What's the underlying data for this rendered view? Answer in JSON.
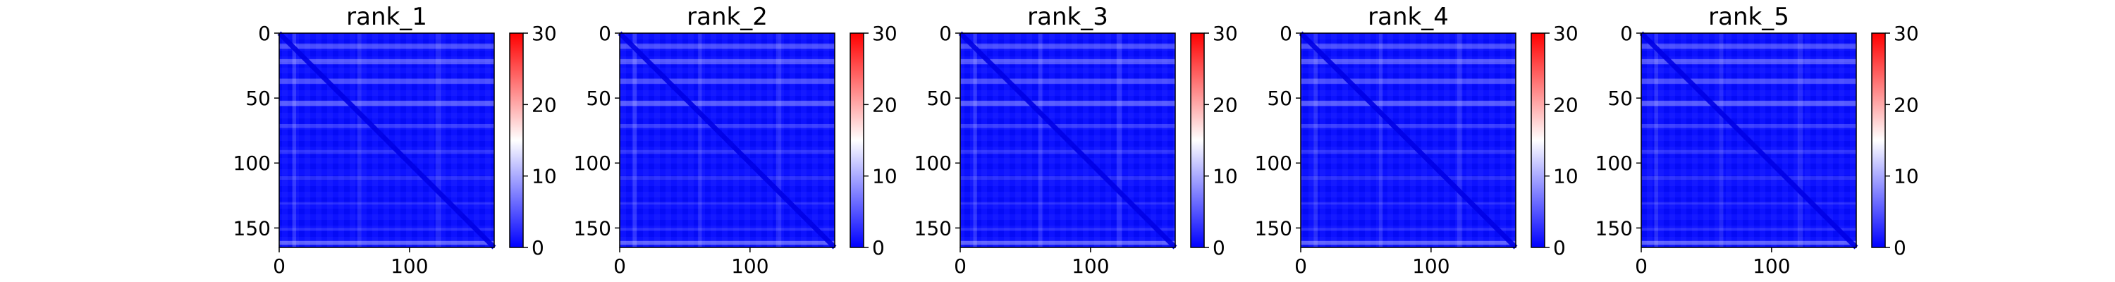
{
  "figure": {
    "panels": [
      {
        "title": "rank_1"
      },
      {
        "title": "rank_2"
      },
      {
        "title": "rank_3"
      },
      {
        "title": "rank_4"
      },
      {
        "title": "rank_5"
      }
    ]
  },
  "chart_data": [
    {
      "type": "heatmap",
      "title": "rank_1",
      "matrix_size": 165,
      "xlim": [
        0,
        165
      ],
      "ylim": [
        165,
        0
      ],
      "x_ticks": [
        0,
        100
      ],
      "y_ticks": [
        0,
        50,
        100,
        150
      ],
      "colorbar": {
        "ticks": [
          0,
          10,
          20,
          30
        ],
        "vmin": 0,
        "vmax": 30,
        "colormap": "bwr"
      }
    },
    {
      "type": "heatmap",
      "title": "rank_2",
      "matrix_size": 165,
      "xlim": [
        0,
        165
      ],
      "ylim": [
        165,
        0
      ],
      "x_ticks": [
        0,
        100
      ],
      "y_ticks": [
        0,
        50,
        100,
        150
      ],
      "colorbar": {
        "ticks": [
          0,
          10,
          20,
          30
        ],
        "vmin": 0,
        "vmax": 30,
        "colormap": "bwr"
      }
    },
    {
      "type": "heatmap",
      "title": "rank_3",
      "matrix_size": 165,
      "xlim": [
        0,
        165
      ],
      "ylim": [
        165,
        0
      ],
      "x_ticks": [
        0,
        100
      ],
      "y_ticks": [
        0,
        50,
        100,
        150
      ],
      "colorbar": {
        "ticks": [
          0,
          10,
          20,
          30
        ],
        "vmin": 0,
        "vmax": 30,
        "colormap": "bwr"
      }
    },
    {
      "type": "heatmap",
      "title": "rank_4",
      "matrix_size": 165,
      "xlim": [
        0,
        165
      ],
      "ylim": [
        165,
        0
      ],
      "x_ticks": [
        0,
        100
      ],
      "y_ticks": [
        0,
        50,
        100,
        150
      ],
      "colorbar": {
        "ticks": [
          0,
          10,
          20,
          30
        ],
        "vmin": 0,
        "vmax": 30,
        "colormap": "bwr"
      }
    },
    {
      "type": "heatmap",
      "title": "rank_5",
      "matrix_size": 165,
      "xlim": [
        0,
        165
      ],
      "ylim": [
        165,
        0
      ],
      "x_ticks": [
        0,
        100
      ],
      "y_ticks": [
        0,
        50,
        100,
        150
      ],
      "colorbar": {
        "ticks": [
          0,
          10,
          20,
          30
        ],
        "vmin": 0,
        "vmax": 30,
        "colormap": "bwr"
      }
    }
  ]
}
